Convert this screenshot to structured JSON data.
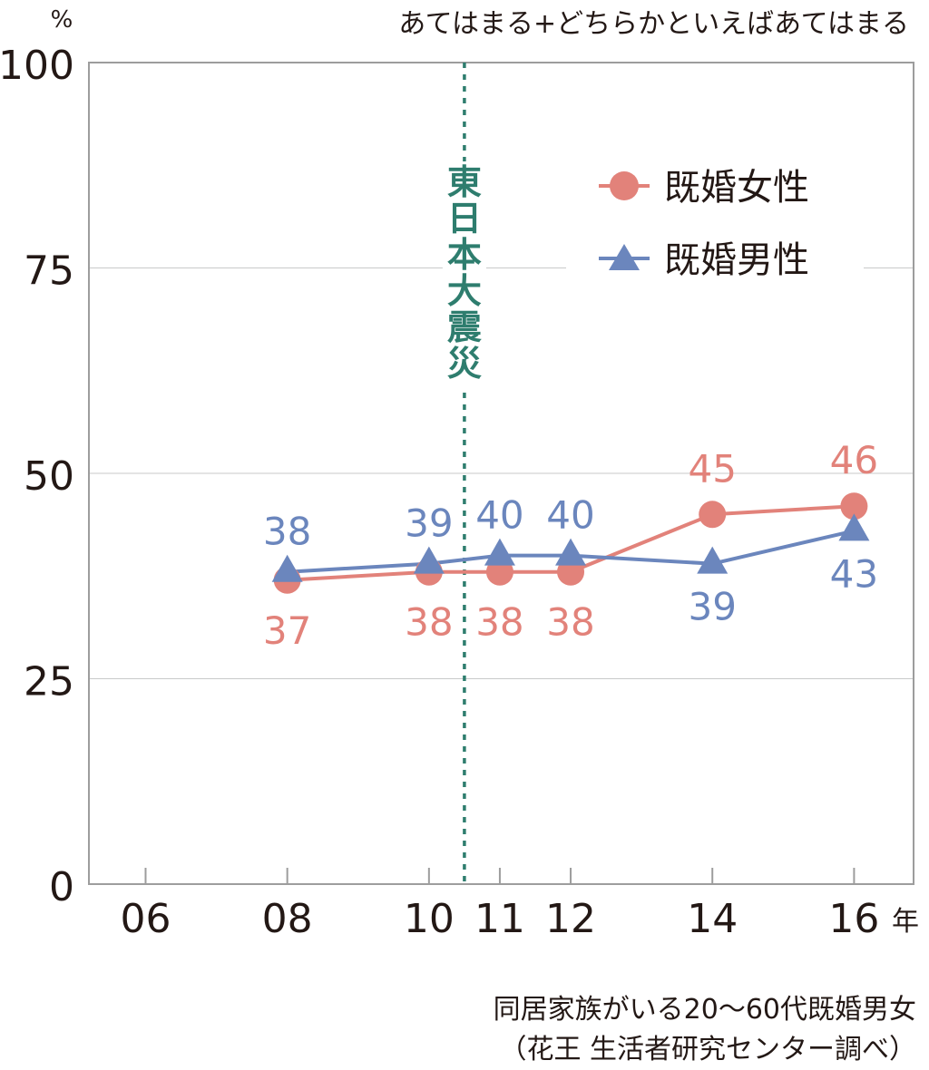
{
  "chart_data": {
    "type": "line",
    "unit_label": "%",
    "subtitle": "あてはまる+どちらかといえばあてはまる",
    "x_unit": "年",
    "x_ticks": [
      "06",
      "08",
      "10",
      "11",
      "12",
      "14",
      "16"
    ],
    "y_ticks": [
      "0",
      "25",
      "50",
      "75",
      "100"
    ],
    "ylim": [
      0,
      100
    ],
    "grid": true,
    "legend_position": "top-right",
    "event_marker": {
      "x": "2010.5",
      "label": "東日本大震災",
      "color": "#2e7d6e"
    },
    "series": [
      {
        "name": "既婚女性",
        "color": "#e2827a",
        "marker": "circle",
        "x": [
          2008,
          2010,
          2011,
          2012,
          2014,
          2016
        ],
        "values": [
          37,
          38,
          38,
          38,
          45,
          46
        ],
        "labels": [
          "37",
          "38",
          "38",
          "38",
          "45",
          "46"
        ]
      },
      {
        "name": "既婚男性",
        "color": "#6b86bd",
        "marker": "triangle",
        "x": [
          2008,
          2010,
          2011,
          2012,
          2014,
          2016
        ],
        "values": [
          38,
          39,
          40,
          40,
          39,
          43
        ],
        "labels": [
          "38",
          "39",
          "40",
          "40",
          "39",
          "43"
        ]
      }
    ]
  },
  "footnote": {
    "line1": "同居家族がいる20～60代既婚男女",
    "line2": "（花王 生活者研究センター調べ）"
  }
}
